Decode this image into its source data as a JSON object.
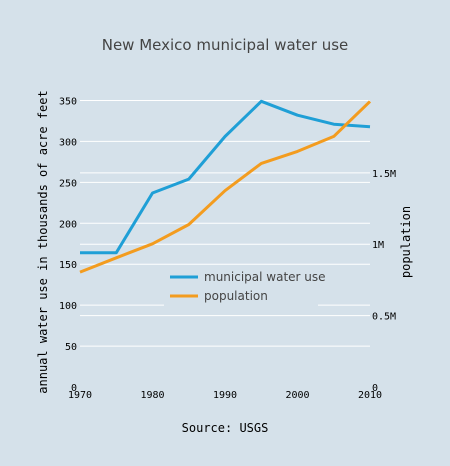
{
  "chart_data": {
    "type": "line",
    "title": "New Mexico municipal water use",
    "source_label": "Source: USGS",
    "x": [
      1970,
      1975,
      1980,
      1985,
      1990,
      1995,
      2000,
      2005,
      2010
    ],
    "xlim": [
      1970,
      2010
    ],
    "x_ticks": [
      1970,
      1980,
      1990,
      2000,
      2010
    ],
    "y_left": {
      "label": "annual water use in thousands of acre feet",
      "lim": [
        0,
        375
      ],
      "ticks": [
        0,
        50,
        100,
        150,
        200,
        250,
        300,
        350
      ],
      "tick_labels": [
        "0",
        "50",
        "100",
        "150",
        "200",
        "250",
        "300",
        "350"
      ]
    },
    "y_right": {
      "label": "population",
      "lim": [
        0,
        2150000
      ],
      "ticks": [
        0,
        500000,
        1000000,
        1500000
      ],
      "tick_labels": [
        "0",
        "0.5M",
        "1M",
        "1.5M"
      ]
    },
    "series": [
      {
        "name": "municipal water use",
        "axis": "left",
        "color": "#1f9fd6",
        "values": [
          164,
          164,
          237,
          254,
          306,
          349,
          332,
          321,
          318
        ]
      },
      {
        "name": "population",
        "axis": "right",
        "color": "#f39c1f",
        "values": [
          805000,
          905000,
          1003000,
          1138000,
          1375000,
          1566000,
          1650000,
          1755000,
          2000000
        ]
      }
    ],
    "grid": true,
    "legend_position": "center"
  }
}
